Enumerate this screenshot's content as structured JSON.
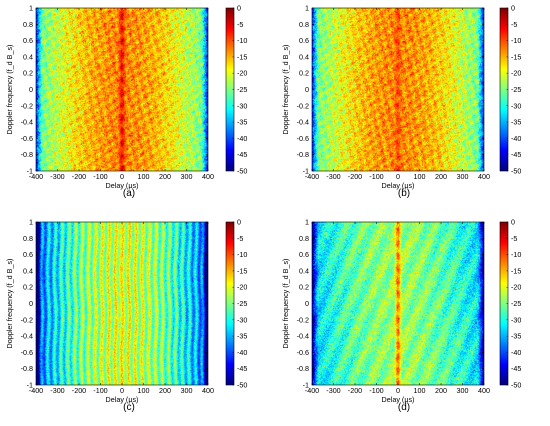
{
  "chart_data": [
    {
      "type": "heatmap",
      "panel_label": "(a)",
      "xlabel": "Delay (μs)",
      "ylabel": "Doppler frequency (f_d B_s)",
      "xlim": [
        -400,
        400
      ],
      "ylim": [
        -1,
        1
      ],
      "xticks": [
        "-400",
        "-300",
        "-200",
        "-100",
        "0",
        "100",
        "200",
        "300",
        "400"
      ],
      "yticks": [
        "-1",
        "-0.8",
        "-0.6",
        "-0.4",
        "-0.2",
        "0",
        "0.2",
        "0.4",
        "0.6",
        "0.8",
        "1"
      ],
      "colorbar": {
        "range": [
          -50,
          0
        ],
        "ticks": [
          "0",
          "-5",
          "-10",
          "-15",
          "-20",
          "-25",
          "-30",
          "-35",
          "-40",
          "-45",
          "-50"
        ],
        "colormap": "jet"
      },
      "pattern": {
        "center_db": -13,
        "edge_db": -28,
        "texture": "fine-speckle",
        "ridge_at_zero_delay_db": -7
      }
    },
    {
      "type": "heatmap",
      "panel_label": "(b)",
      "xlabel": "Delay (μs)",
      "ylabel": "Doppler frequency (f_d B_s)",
      "xlim": [
        -400,
        400
      ],
      "ylim": [
        -1,
        1
      ],
      "xticks": [
        "-400",
        "-300",
        "-200",
        "-100",
        "0",
        "100",
        "200",
        "300",
        "400"
      ],
      "yticks": [
        "-1",
        "-0.8",
        "-0.6",
        "-0.4",
        "-0.2",
        "0",
        "0.2",
        "0.4",
        "0.6",
        "0.8",
        "1"
      ],
      "colorbar": {
        "range": [
          -50,
          0
        ],
        "ticks": [
          "0",
          "-5",
          "-10",
          "-15",
          "-20",
          "-25",
          "-30",
          "-35",
          "-40",
          "-45",
          "-50"
        ],
        "colormap": "jet"
      },
      "pattern": {
        "center_db": -13,
        "edge_db": -28,
        "texture": "fine-speckle",
        "ridge_at_zero_delay_db": -11
      }
    },
    {
      "type": "heatmap",
      "panel_label": "(c)",
      "xlabel": "Delay (μs)",
      "ylabel": "Doppler frequency (f_d B_s)",
      "xlim": [
        -400,
        400
      ],
      "ylim": [
        -1,
        1
      ],
      "xticks": [
        "-400",
        "-300",
        "-200",
        "-100",
        "0",
        "100",
        "200",
        "300",
        "400"
      ],
      "yticks": [
        "-1",
        "-0.8",
        "-0.6",
        "-0.4",
        "-0.2",
        "0",
        "0.2",
        "0.4",
        "0.6",
        "0.8",
        "1"
      ],
      "colorbar": {
        "range": [
          -50,
          0
        ],
        "ticks": [
          "0",
          "-5",
          "-10",
          "-15",
          "-20",
          "-25",
          "-30",
          "-35",
          "-40",
          "-45",
          "-50"
        ],
        "colormap": "jet"
      },
      "pattern": {
        "center_db": -21,
        "edge_db": -40,
        "texture": "vertical-stripes",
        "ridge_at_zero_delay_db": -21
      }
    },
    {
      "type": "heatmap",
      "panel_label": "(d)",
      "xlabel": "Delay (μs)",
      "ylabel": "Doppler frequency (f_d B_s)",
      "xlim": [
        -400,
        400
      ],
      "ylim": [
        -1,
        1
      ],
      "xticks": [
        "-400",
        "-300",
        "-200",
        "-100",
        "0",
        "100",
        "200",
        "300",
        "400"
      ],
      "yticks": [
        "-1",
        "-0.8",
        "-0.6",
        "-0.4",
        "-0.2",
        "0",
        "0.2",
        "0.4",
        "0.6",
        "0.8",
        "1"
      ],
      "colorbar": {
        "range": [
          -50,
          0
        ],
        "ticks": [
          "0",
          "-5",
          "-10",
          "-15",
          "-20",
          "-25",
          "-30",
          "-35",
          "-40",
          "-45",
          "-50"
        ],
        "colormap": "jet"
      },
      "pattern": {
        "center_db": -24,
        "edge_db": -34,
        "texture": "speckle",
        "ridge_at_zero_delay_db": -12
      }
    }
  ]
}
